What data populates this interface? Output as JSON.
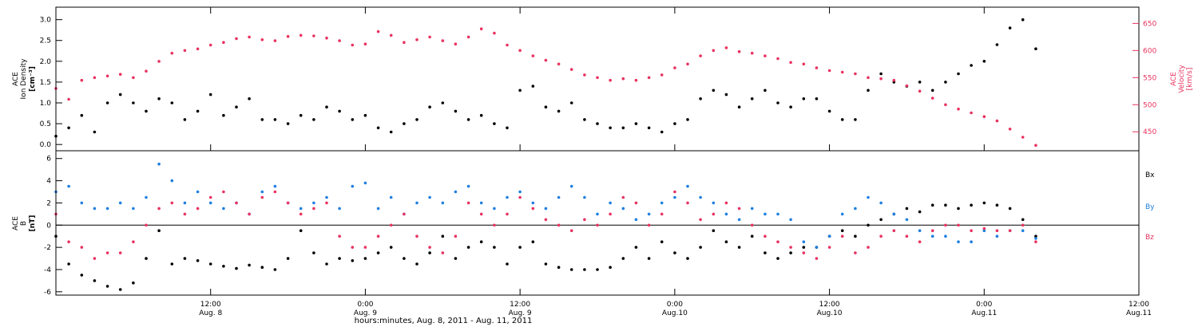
{
  "colors": {
    "density": "#000000",
    "velocity": "#e8335f",
    "bx": "#000000",
    "by": "#1f7fe0",
    "bz": "#e8335f",
    "axis": "#000000"
  },
  "xaxis": {
    "title": "hours:minutes, Aug.  8, 2011 - Aug. 11, 2011",
    "range_hours": [
      0,
      84
    ],
    "ticks": [
      {
        "hour": 12,
        "time": "12:00",
        "date": "Aug. 8"
      },
      {
        "hour": 24,
        "time": "0:00",
        "date": "Aug. 9"
      },
      {
        "hour": 36,
        "time": "12:00",
        "date": "Aug. 9"
      },
      {
        "hour": 48,
        "time": "0:00",
        "date": "Aug.10"
      },
      {
        "hour": 60,
        "time": "12:00",
        "date": "Aug.10"
      },
      {
        "hour": 72,
        "time": "0:00",
        "date": "Aug.11"
      },
      {
        "hour": 84,
        "time": "12:00",
        "date": "Aug.11"
      }
    ]
  },
  "chart_data": [
    {
      "type": "scatter",
      "name": "top panel",
      "ylabel_left": [
        "ACE",
        "Ion Density",
        "[cm⁻³]"
      ],
      "ylabel_right": [
        "ACE",
        "Velocity",
        "[km/s]"
      ],
      "ylim_left": [
        -0.15,
        3.3
      ],
      "ylim_right": [
        415,
        680
      ],
      "yticks_left": [
        "0.0",
        "0.5",
        "1.0",
        "1.5",
        "2.0",
        "2.5",
        "3.0"
      ],
      "yticks_right": [
        "450",
        "500",
        "550",
        "600",
        "650"
      ],
      "series": [
        {
          "key": "density",
          "axis": "left",
          "x": [
            0,
            1,
            2,
            3,
            4,
            5,
            6,
            7,
            8,
            9,
            10,
            11,
            12,
            13,
            14,
            15,
            16,
            17,
            18,
            19,
            20,
            21,
            22,
            23,
            24,
            25,
            26,
            27,
            28,
            29,
            30,
            31,
            32,
            33,
            34,
            35,
            36,
            37,
            38,
            39,
            40,
            41,
            42,
            43,
            44,
            45,
            46,
            47,
            48,
            49,
            50,
            51,
            52,
            53,
            54,
            55,
            56,
            57,
            58,
            59,
            60,
            61,
            62,
            63,
            64,
            65,
            66,
            67,
            68,
            69,
            70,
            71,
            72,
            73,
            74,
            75,
            76
          ],
          "values": [
            0.2,
            0.4,
            0.7,
            0.3,
            1.0,
            1.2,
            1.0,
            0.8,
            1.1,
            1.0,
            0.6,
            0.8,
            1.2,
            0.7,
            0.9,
            1.1,
            0.6,
            0.6,
            0.5,
            0.7,
            0.6,
            0.9,
            0.8,
            0.6,
            0.7,
            0.4,
            0.3,
            0.5,
            0.6,
            0.9,
            1.0,
            0.8,
            0.6,
            0.7,
            0.5,
            0.4,
            1.3,
            1.4,
            0.9,
            0.8,
            1.0,
            0.6,
            0.5,
            0.4,
            0.4,
            0.5,
            0.4,
            0.3,
            0.5,
            0.6,
            1.1,
            1.3,
            1.2,
            0.9,
            1.1,
            1.3,
            1.0,
            0.9,
            1.1,
            1.1,
            0.8,
            0.6,
            0.6,
            1.3,
            1.7,
            1.5,
            1.4,
            1.5,
            1.3,
            1.5,
            1.7,
            1.9,
            2.0,
            2.4,
            2.8,
            3.0,
            2.3
          ]
        },
        {
          "key": "velocity",
          "axis": "right",
          "x": [
            0,
            1,
            2,
            3,
            4,
            5,
            6,
            7,
            8,
            9,
            10,
            11,
            12,
            13,
            14,
            15,
            16,
            17,
            18,
            19,
            20,
            21,
            22,
            23,
            24,
            25,
            26,
            27,
            28,
            29,
            30,
            31,
            32,
            33,
            34,
            35,
            36,
            37,
            38,
            39,
            40,
            41,
            42,
            43,
            44,
            45,
            46,
            47,
            48,
            49,
            50,
            51,
            52,
            53,
            54,
            55,
            56,
            57,
            58,
            59,
            60,
            61,
            62,
            63,
            64,
            65,
            66,
            67,
            68,
            69,
            70,
            71,
            72,
            73,
            74,
            75,
            76
          ],
          "values": [
            530,
            510,
            545,
            550,
            553,
            556,
            550,
            562,
            580,
            595,
            600,
            603,
            610,
            615,
            622,
            625,
            620,
            618,
            626,
            628,
            627,
            623,
            618,
            610,
            612,
            635,
            628,
            615,
            620,
            625,
            618,
            612,
            625,
            640,
            632,
            610,
            600,
            590,
            582,
            575,
            565,
            555,
            550,
            545,
            548,
            545,
            550,
            555,
            568,
            575,
            590,
            600,
            605,
            598,
            595,
            590,
            585,
            578,
            575,
            568,
            563,
            560,
            557,
            550,
            548,
            545,
            535,
            525,
            512,
            500,
            492,
            485,
            478,
            470,
            455,
            440,
            425
          ]
        }
      ]
    },
    {
      "type": "scatter",
      "name": "bottom panel",
      "ylabel_left": [
        "ACE",
        "B",
        "[nT]"
      ],
      "ylim": [
        -6.3,
        6.7
      ],
      "yticks": [
        "-6",
        "-4",
        "-2",
        "0",
        "2",
        "4",
        "6"
      ],
      "legend": [
        "Bx",
        "By",
        "Bz"
      ],
      "legend_placement": "right",
      "series": [
        {
          "key": "bx",
          "name": "Bx",
          "x": [
            0,
            1,
            2,
            3,
            4,
            5,
            6,
            7,
            8,
            9,
            10,
            11,
            12,
            13,
            14,
            15,
            16,
            17,
            18,
            19,
            20,
            21,
            22,
            23,
            24,
            25,
            26,
            27,
            28,
            29,
            30,
            31,
            32,
            33,
            34,
            35,
            36,
            37,
            38,
            39,
            40,
            41,
            42,
            43,
            44,
            45,
            46,
            47,
            48,
            49,
            50,
            51,
            52,
            53,
            54,
            55,
            56,
            57,
            58,
            59,
            60,
            61,
            62,
            63,
            64,
            65,
            66,
            67,
            68,
            69,
            70,
            71,
            72,
            73,
            74,
            75,
            76
          ],
          "values": [
            -1.0,
            -3.5,
            -4.5,
            -5.0,
            -5.5,
            -5.8,
            -5.2,
            -3.0,
            -0.5,
            -3.5,
            -3.0,
            -3.2,
            -3.5,
            -3.7,
            -3.9,
            -3.6,
            -3.8,
            -4.0,
            -3.0,
            -0.5,
            -2.5,
            -3.5,
            -3.0,
            -3.2,
            -3.0,
            -2.5,
            -2.0,
            -3.0,
            -3.5,
            -2.5,
            -1.0,
            -3.0,
            -2.0,
            -1.5,
            -2.0,
            -3.5,
            -2.0,
            -1.5,
            -3.5,
            -3.8,
            -4.0,
            -4.0,
            -4.0,
            -3.8,
            -3.0,
            -2.0,
            -3.0,
            -1.5,
            -2.5,
            -3.0,
            -2.0,
            -0.5,
            -1.5,
            -2.0,
            -1.0,
            -2.5,
            -3.0,
            -2.5,
            -2.0,
            -2.0,
            -1.0,
            -0.5,
            -1.0,
            0.0,
            0.5,
            1.0,
            1.5,
            1.2,
            1.8,
            1.8,
            1.5,
            1.8,
            2.0,
            1.8,
            1.5,
            0.5,
            -1.0
          ]
        },
        {
          "key": "by",
          "name": "By",
          "x": [
            0,
            1,
            2,
            3,
            4,
            5,
            6,
            7,
            8,
            9,
            10,
            11,
            12,
            13,
            14,
            15,
            16,
            17,
            18,
            19,
            20,
            21,
            22,
            23,
            24,
            25,
            26,
            27,
            28,
            29,
            30,
            31,
            32,
            33,
            34,
            35,
            36,
            37,
            38,
            39,
            40,
            41,
            42,
            43,
            44,
            45,
            46,
            47,
            48,
            49,
            50,
            51,
            52,
            53,
            54,
            55,
            56,
            57,
            58,
            59,
            60,
            61,
            62,
            63,
            64,
            65,
            66,
            67,
            68,
            69,
            70,
            71,
            72,
            73,
            74,
            75,
            76
          ],
          "values": [
            3.0,
            3.5,
            2.0,
            1.5,
            1.5,
            2.0,
            1.5,
            2.5,
            5.5,
            4.0,
            2.0,
            3.0,
            2.0,
            1.5,
            2.0,
            1.0,
            3.0,
            3.5,
            2.0,
            1.5,
            2.0,
            2.5,
            1.5,
            3.5,
            3.8,
            1.5,
            2.5,
            1.0,
            2.0,
            2.5,
            2.0,
            3.0,
            3.5,
            2.0,
            1.5,
            2.5,
            3.0,
            2.0,
            1.5,
            2.5,
            3.5,
            2.5,
            1.0,
            2.0,
            1.5,
            0.5,
            1.0,
            2.0,
            2.5,
            3.5,
            2.5,
            2.0,
            1.0,
            0.5,
            1.5,
            1.0,
            1.0,
            0.5,
            -1.5,
            -2.0,
            -1.0,
            1.0,
            1.5,
            2.5,
            2.0,
            1.0,
            0.5,
            -0.5,
            -1.0,
            -1.0,
            -1.5,
            -1.5,
            -0.5,
            -1.0,
            -0.5,
            -0.5,
            -1.2
          ]
        },
        {
          "key": "bz",
          "name": "Bz",
          "x": [
            0,
            1,
            2,
            3,
            4,
            5,
            6,
            7,
            8,
            9,
            10,
            11,
            12,
            13,
            14,
            15,
            16,
            17,
            18,
            19,
            20,
            21,
            22,
            23,
            24,
            25,
            26,
            27,
            28,
            29,
            30,
            31,
            32,
            33,
            34,
            35,
            36,
            37,
            38,
            39,
            40,
            41,
            42,
            43,
            44,
            45,
            46,
            47,
            48,
            49,
            50,
            51,
            52,
            53,
            54,
            55,
            56,
            57,
            58,
            59,
            60,
            61,
            62,
            63,
            64,
            65,
            66,
            67,
            68,
            69,
            70,
            71,
            72,
            73,
            74,
            75,
            76
          ],
          "values": [
            1.0,
            -1.5,
            -2.0,
            -3.0,
            -2.5,
            -2.5,
            -1.5,
            0.0,
            1.5,
            2.0,
            1.0,
            1.5,
            2.5,
            3.0,
            2.0,
            1.0,
            2.5,
            3.0,
            2.0,
            1.0,
            1.5,
            2.0,
            -1.0,
            -2.0,
            -2.0,
            -1.0,
            0.0,
            1.0,
            -1.0,
            -2.0,
            -2.5,
            -1.0,
            2.0,
            1.0,
            0.0,
            1.0,
            2.5,
            1.5,
            0.5,
            0.0,
            -0.5,
            0.5,
            0.0,
            1.0,
            2.5,
            2.0,
            0.0,
            1.0,
            3.0,
            2.0,
            0.5,
            1.0,
            2.0,
            1.5,
            0.0,
            -1.0,
            -1.5,
            -2.0,
            -2.5,
            -3.0,
            -2.0,
            -1.0,
            -2.5,
            -2.0,
            -1.0,
            -0.5,
            -1.0,
            -1.5,
            -0.5,
            0.0,
            0.0,
            -0.5,
            -0.3,
            -0.5,
            -0.5,
            0.0,
            -1.5
          ]
        }
      ]
    }
  ]
}
